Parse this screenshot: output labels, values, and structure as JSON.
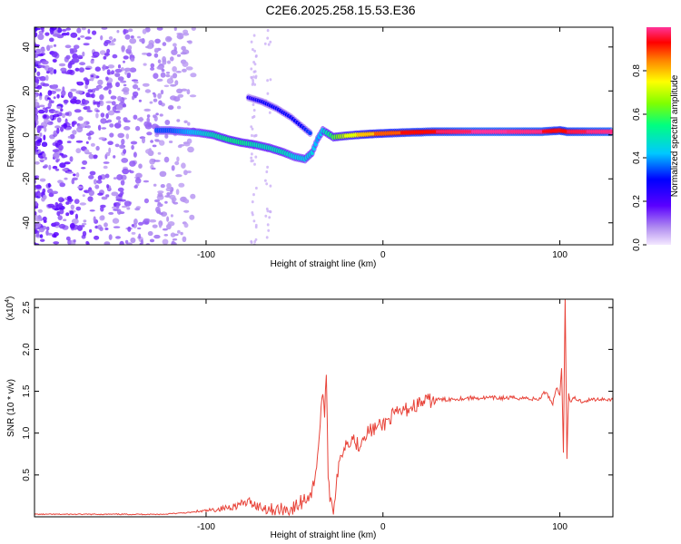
{
  "title": "C2E6.2025.258.15.53.E36",
  "chart_data": [
    {
      "type": "heatmap",
      "xlabel": "Height of straight line (km)",
      "ylabel": "Frequency (Hz)",
      "xlim": [
        -197,
        130
      ],
      "ylim": [
        -50,
        49
      ],
      "xticks": [
        -100,
        0,
        100
      ],
      "yticks": [
        -40,
        -20,
        0,
        20,
        40
      ],
      "colorbar": {
        "label": "Normalized spectral amplitude",
        "range": [
          0,
          1
        ],
        "ticks": [
          "0.0",
          "0.2",
          "0.4",
          "0.6",
          "0.8"
        ],
        "tick_values": [
          0,
          0.2,
          0.4,
          0.6,
          0.8
        ]
      },
      "main_trace": [
        {
          "x": -128,
          "y": 2,
          "a": 0.35
        },
        {
          "x": -120,
          "y": 2,
          "a": 0.35
        },
        {
          "x": -112,
          "y": 1.5,
          "a": 0.4
        },
        {
          "x": -104,
          "y": 1,
          "a": 0.45
        },
        {
          "x": -96,
          "y": 0,
          "a": 0.5
        },
        {
          "x": -88,
          "y": -2,
          "a": 0.55
        },
        {
          "x": -80,
          "y": -3.5,
          "a": 0.55
        },
        {
          "x": -72,
          "y": -4.5,
          "a": 0.5
        },
        {
          "x": -64,
          "y": -6,
          "a": 0.5
        },
        {
          "x": -56,
          "y": -8,
          "a": 0.5
        },
        {
          "x": -50,
          "y": -10,
          "a": 0.45
        },
        {
          "x": -44,
          "y": -11,
          "a": 0.45
        },
        {
          "x": -40,
          "y": -8,
          "a": 0.45
        },
        {
          "x": -37,
          "y": -2,
          "a": 0.4
        },
        {
          "x": -34,
          "y": 2,
          "a": 0.45
        },
        {
          "x": -28,
          "y": -1,
          "a": 0.6
        },
        {
          "x": -22,
          "y": -0.5,
          "a": 0.7
        },
        {
          "x": -15,
          "y": 0,
          "a": 0.75
        },
        {
          "x": -5,
          "y": 0.5,
          "a": 0.85
        },
        {
          "x": 10,
          "y": 1,
          "a": 0.9
        },
        {
          "x": 30,
          "y": 1.5,
          "a": 0.95
        },
        {
          "x": 50,
          "y": 1.5,
          "a": 1.0
        },
        {
          "x": 70,
          "y": 1.5,
          "a": 1.0
        },
        {
          "x": 90,
          "y": 1.5,
          "a": 0.98
        },
        {
          "x": 100,
          "y": 2,
          "a": 0.9
        },
        {
          "x": 104,
          "y": 1.5,
          "a": 0.95
        },
        {
          "x": 115,
          "y": 1.5,
          "a": 0.98
        },
        {
          "x": 130,
          "y": 1.5,
          "a": 1.0
        }
      ],
      "upper_branch": [
        {
          "x": -76,
          "y": 17,
          "a": 0.25
        },
        {
          "x": -68,
          "y": 15,
          "a": 0.3
        },
        {
          "x": -60,
          "y": 12,
          "a": 0.3
        },
        {
          "x": -52,
          "y": 8,
          "a": 0.3
        },
        {
          "x": -46,
          "y": 4,
          "a": 0.3
        },
        {
          "x": -40,
          "y": 0,
          "a": 0.35
        }
      ]
    },
    {
      "type": "line",
      "xlabel": "Height of straight line (km)",
      "ylabel": "SNR (10 * v/v)",
      "scale_note": "(x10",
      "scale_exp": "4",
      "xlim": [
        -197,
        130
      ],
      "ylim": [
        0,
        2.6
      ],
      "xticks": [
        -100,
        0,
        100
      ],
      "yticks": [
        0.5,
        1.0,
        1.5,
        2.0,
        2.5
      ],
      "ytick_labels": [
        "0.5",
        "1.0",
        "1.5",
        "2.0",
        "2.5"
      ],
      "series": [
        {
          "name": "SNR",
          "color": "#e8443a",
          "x": [
            -197,
            -150,
            -125,
            -110,
            -100,
            -90,
            -80,
            -75,
            -70,
            -60,
            -50,
            -45,
            -40,
            -38,
            -36,
            -34,
            -33,
            -32,
            -31,
            -30,
            -28,
            -26,
            -24,
            -22,
            -20,
            -17,
            -14,
            -10,
            -5,
            0,
            5,
            10,
            15,
            20,
            25,
            30,
            35,
            40,
            50,
            60,
            70,
            80,
            88,
            92,
            96,
            98,
            100,
            101,
            102,
            103,
            104,
            105,
            106,
            108,
            112,
            118,
            124,
            130
          ],
          "y": [
            0.03,
            0.03,
            0.03,
            0.05,
            0.07,
            0.1,
            0.15,
            0.18,
            0.12,
            0.08,
            0.1,
            0.2,
            0.3,
            0.55,
            0.95,
            1.55,
            1.1,
            1.75,
            0.55,
            0.25,
            0.1,
            0.45,
            0.7,
            0.85,
            0.9,
            0.95,
            0.85,
            1.0,
            1.05,
            1.1,
            1.2,
            1.25,
            1.3,
            1.35,
            1.38,
            1.4,
            1.4,
            1.41,
            1.42,
            1.42,
            1.42,
            1.42,
            1.4,
            1.5,
            1.35,
            1.55,
            1.45,
            1.8,
            0.75,
            2.6,
            0.7,
            1.5,
            1.35,
            1.42,
            1.38,
            1.4,
            1.41,
            1.4
          ]
        }
      ]
    }
  ]
}
